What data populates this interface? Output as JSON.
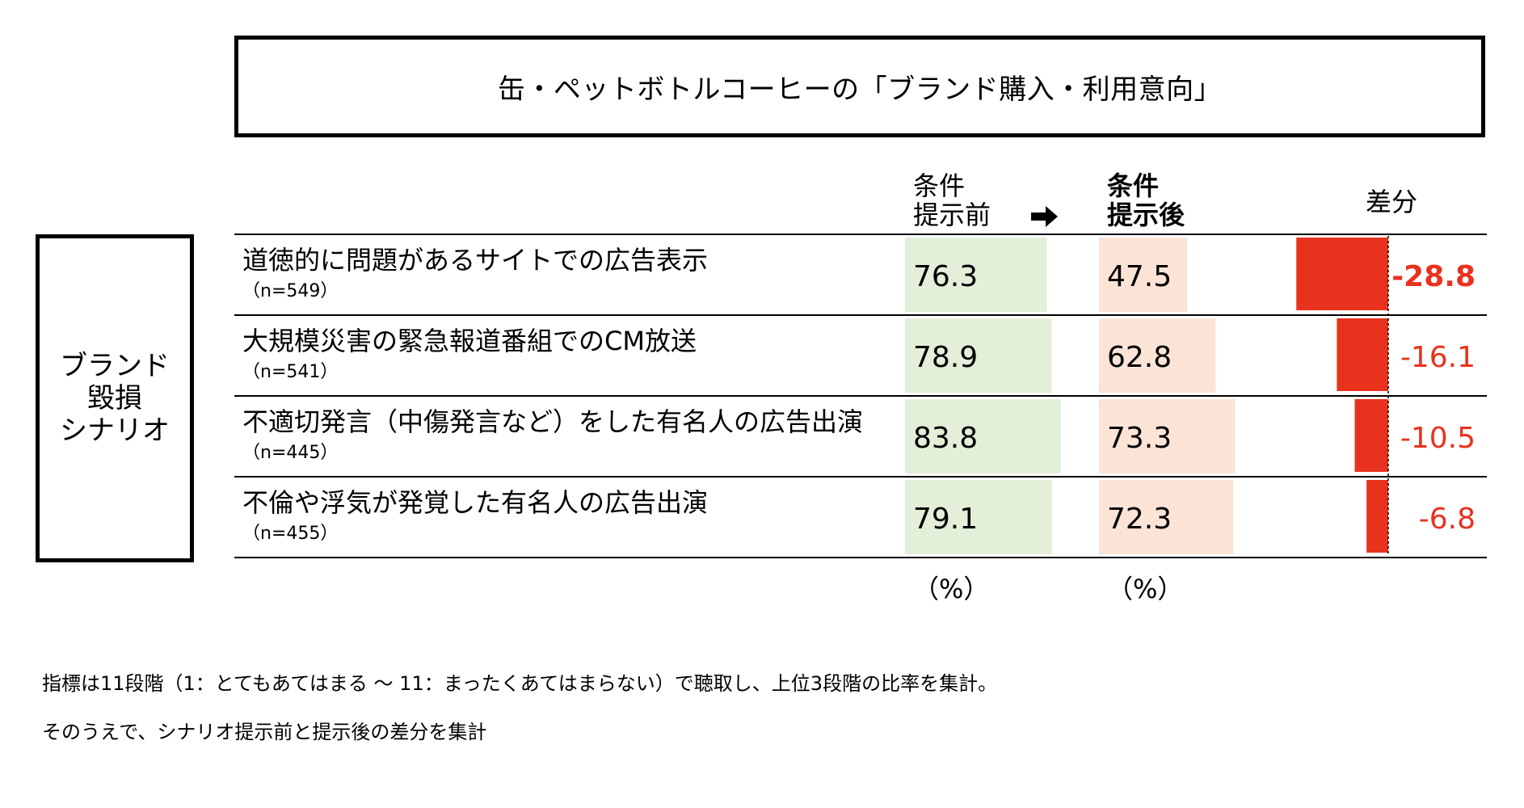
{
  "title": "缶・ペットボトルコーヒーの「ブランド購入・利用意向」",
  "side_label": [
    "ブランド",
    "毀損",
    "シナリオ"
  ],
  "headers": {
    "before": [
      "条件",
      "提示前"
    ],
    "after": [
      "条件",
      "提示後"
    ],
    "diff": "差分"
  },
  "units": {
    "before": "（%）",
    "after": "（%）"
  },
  "colors": {
    "before_fill": "#e3efd9",
    "after_fill": "#fbe4d5",
    "diff_bar": "#e8321e",
    "diff_text": "#e8321e"
  },
  "chart_data": {
    "type": "table",
    "rows": [
      {
        "label": "道徳的に問題があるサイトでの広告表示",
        "n": "（n=549）",
        "before": 76.3,
        "after": 47.5,
        "diff": -28.8
      },
      {
        "label": "大規模災害の緊急報道番組でのCM放送",
        "n": "（n=541）",
        "before": 78.9,
        "after": 62.8,
        "diff": -16.1
      },
      {
        "label": "不適切発言（中傷発言など）をした有名人の広告出演",
        "n": "（n=445）",
        "before": 83.8,
        "after": 73.3,
        "diff": -10.5
      },
      {
        "label": "不倫や浮気が発覚した有名人の広告出演",
        "n": "（n=455）",
        "before": 79.1,
        "after": 72.3,
        "diff": -6.8
      }
    ]
  },
  "notes": [
    "指標は11段階（1：とてもあてはまる 〜 11：まったくあてはまらない）で聴取し、上位3段階の比率を集計。",
    "そのうえで、シナリオ提示前と提示後の差分を集計"
  ]
}
